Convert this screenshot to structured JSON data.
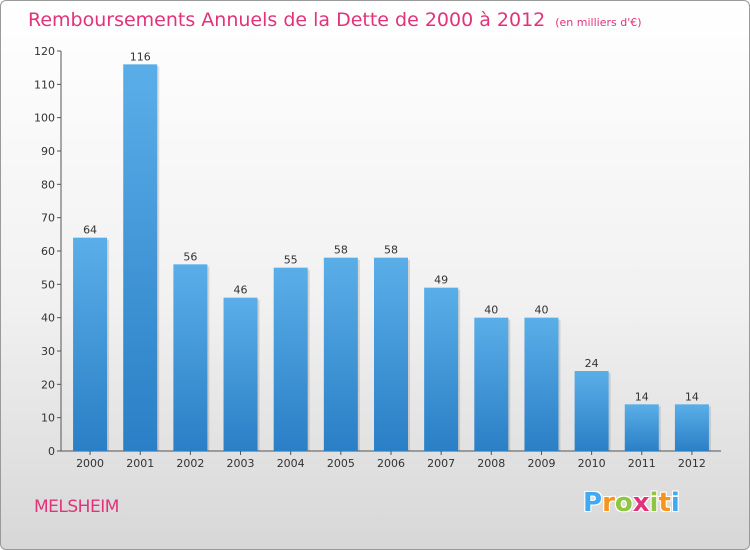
{
  "chart_data": {
    "type": "bar",
    "title": "Remboursements Annuels de la Dette de 2000 à 2012",
    "unit": "(en milliers d'€)",
    "categories": [
      "2000",
      "2001",
      "2002",
      "2003",
      "2004",
      "2005",
      "2006",
      "2007",
      "2008",
      "2009",
      "2010",
      "2011",
      "2012"
    ],
    "values": [
      64,
      116,
      56,
      46,
      55,
      58,
      58,
      49,
      40,
      40,
      24,
      14,
      14
    ],
    "yticks": [
      0,
      10,
      20,
      30,
      40,
      50,
      60,
      70,
      80,
      90,
      100,
      110,
      120
    ],
    "ylim": [
      0,
      120
    ],
    "grid": false,
    "xlabel": "",
    "ylabel": ""
  },
  "footer": {
    "commune": "MELSHEIM",
    "logo": {
      "letters": [
        "P",
        "r",
        "o",
        "x",
        "i",
        "t",
        "i"
      ],
      "colors": [
        "#3fa9f5",
        "#f7941d",
        "#8dc63f",
        "#e2337a",
        "#8dc63f",
        "#f7941d",
        "#3fa9f5"
      ]
    }
  },
  "colors": {
    "bar_top": "#5aaee8",
    "bar_bottom": "#2a7fc6",
    "title": "#e2337a"
  }
}
